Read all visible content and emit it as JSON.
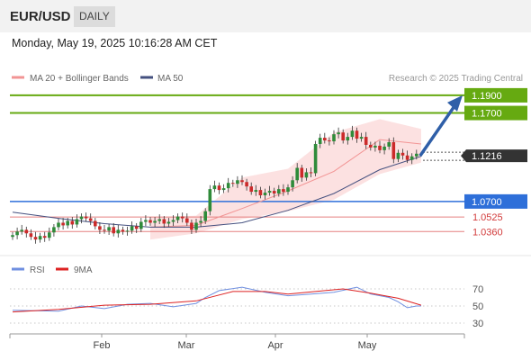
{
  "header": {
    "pair": "EUR/USD",
    "timeframe": "DAILY"
  },
  "datetime": "Monday, May 19, 2025 10:16:28 AM CET",
  "credit": "Research © 2025 Trading Central",
  "colors": {
    "resistance": "#66aa11",
    "support": "#2e6fd9",
    "pivot_red": "#e58080",
    "bollinger": "#fbd7d7",
    "ma20": "#f29494",
    "ma50": "#44507f",
    "candle_up": "#2f8b3a",
    "candle_down": "#cc2a2a",
    "rsi": "#6f8fe0",
    "rsi_ma": "#dd2222",
    "forecast_arrow": "#2f5fa8",
    "current_price_box": "#333333"
  },
  "chart_data": [
    {
      "type": "candlestick",
      "legend": [
        {
          "name": "MA 20 + Bollinger Bands",
          "color": "#f29494"
        },
        {
          "name": "MA 50",
          "color": "#44507f"
        }
      ],
      "x_ticks": [
        "Feb",
        "Mar",
        "Apr",
        "May"
      ],
      "ylim": [
        1.018,
        1.196
      ],
      "levels": [
        {
          "value": 1.19,
          "label": "1.1900",
          "kind": "resistance"
        },
        {
          "value": 1.17,
          "label": "1.1700",
          "kind": "resistance"
        },
        {
          "value": 1.1216,
          "label": "1.1216",
          "kind": "current"
        },
        {
          "value": 1.07,
          "label": "1.0700",
          "kind": "support"
        },
        {
          "value": 1.0525,
          "label": "1.0525",
          "kind": "pivot"
        },
        {
          "value": 1.036,
          "label": "1.0360",
          "kind": "pivot"
        }
      ],
      "closes": [
        1.032,
        1.036,
        1.038,
        1.034,
        1.03,
        1.027,
        1.031,
        1.029,
        1.035,
        1.041,
        1.046,
        1.043,
        1.048,
        1.044,
        1.05,
        1.053,
        1.051,
        1.048,
        1.042,
        1.038,
        1.037,
        1.041,
        1.034,
        1.038,
        1.036,
        1.037,
        1.042,
        1.039,
        1.047,
        1.049,
        1.046,
        1.048,
        1.05,
        1.045,
        1.047,
        1.049,
        1.053,
        1.051,
        1.046,
        1.038,
        1.046,
        1.048,
        1.059,
        1.084,
        1.088,
        1.083,
        1.085,
        1.091,
        1.09,
        1.094,
        1.092,
        1.087,
        1.081,
        1.083,
        1.077,
        1.08,
        1.082,
        1.079,
        1.084,
        1.081,
        1.086,
        1.094,
        1.108,
        1.097,
        1.103,
        1.102,
        1.135,
        1.142,
        1.139,
        1.138,
        1.146,
        1.148,
        1.139,
        1.143,
        1.15,
        1.141,
        1.143,
        1.134,
        1.131,
        1.133,
        1.128,
        1.132,
        1.137,
        1.118,
        1.125,
        1.122,
        1.117,
        1.121,
        1.124
      ],
      "bollinger_upper": [
        [
          30,
          1.052
        ],
        [
          40,
          1.054
        ],
        [
          50,
          1.097
        ],
        [
          60,
          1.107
        ],
        [
          70,
          1.148
        ],
        [
          80,
          1.163
        ],
        [
          89,
          1.152
        ]
      ],
      "bollinger_lower": [
        [
          30,
          1.027
        ],
        [
          40,
          1.034
        ],
        [
          50,
          1.05
        ],
        [
          60,
          1.059
        ],
        [
          70,
          1.072
        ],
        [
          80,
          1.101
        ],
        [
          89,
          1.114
        ]
      ],
      "ma20": [
        [
          30,
          1.041
        ],
        [
          40,
          1.043
        ],
        [
          50,
          1.062
        ],
        [
          60,
          1.082
        ],
        [
          70,
          1.104
        ],
        [
          80,
          1.14
        ],
        [
          89,
          1.135
        ]
      ],
      "ma50": [
        [
          0,
          1.058
        ],
        [
          10,
          1.051
        ],
        [
          20,
          1.045
        ],
        [
          30,
          1.041
        ],
        [
          40,
          1.041
        ],
        [
          50,
          1.046
        ],
        [
          60,
          1.06
        ],
        [
          70,
          1.079
        ],
        [
          80,
          1.106
        ],
        [
          89,
          1.121
        ]
      ],
      "forecast": {
        "from": 1.1216,
        "to": 1.19
      }
    },
    {
      "type": "line",
      "legend": [
        {
          "name": "RSI",
          "color": "#6f8fe0"
        },
        {
          "name": "9MA",
          "color": "#dd2222"
        }
      ],
      "y_ticks": [
        "70",
        "50",
        "30"
      ],
      "ylim": [
        20,
        80
      ],
      "guides": [
        70,
        50,
        30
      ],
      "rsi": [
        [
          0,
          45
        ],
        [
          10,
          44
        ],
        [
          15,
          50
        ],
        [
          20,
          47
        ],
        [
          25,
          52
        ],
        [
          30,
          53
        ],
        [
          35,
          49
        ],
        [
          40,
          53
        ],
        [
          42,
          60
        ],
        [
          45,
          68
        ],
        [
          50,
          72
        ],
        [
          55,
          66
        ],
        [
          60,
          62
        ],
        [
          65,
          64
        ],
        [
          70,
          66
        ],
        [
          75,
          72
        ],
        [
          78,
          64
        ],
        [
          82,
          60
        ],
        [
          84,
          55
        ],
        [
          86,
          48
        ],
        [
          88,
          50
        ],
        [
          89,
          50
        ]
      ],
      "rsi_ma": [
        [
          0,
          43
        ],
        [
          10,
          46
        ],
        [
          20,
          51
        ],
        [
          30,
          52
        ],
        [
          40,
          56
        ],
        [
          48,
          67
        ],
        [
          55,
          67
        ],
        [
          60,
          64
        ],
        [
          66,
          67
        ],
        [
          72,
          70
        ],
        [
          78,
          65
        ],
        [
          84,
          59
        ],
        [
          89,
          51
        ]
      ]
    }
  ]
}
